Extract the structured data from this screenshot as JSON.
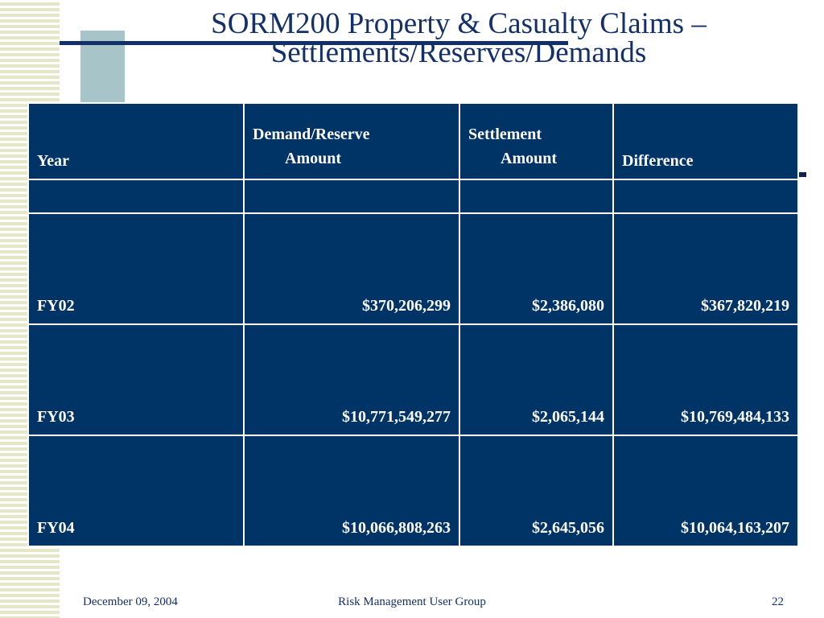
{
  "slide": {
    "title_line1": "SORM200 Property & Casualty Claims –",
    "title_line2": "Settlements/Reserves/Demands"
  },
  "table": {
    "headers": {
      "year": "Year",
      "demand_line1": "Demand/Reserve",
      "demand_line2": "Amount",
      "settlement_line1": "Settlement",
      "settlement_line2": "Amount",
      "difference": "Difference"
    },
    "rows": [
      {
        "year": "FY02",
        "demand": "$370,206,299",
        "settlement": "$2,386,080",
        "difference": "$367,820,219"
      },
      {
        "year": "FY03",
        "demand": "$10,771,549,277",
        "settlement": "$2,065,144",
        "difference": "$10,769,484,133"
      },
      {
        "year": "FY04",
        "demand": "$10,066,808,263",
        "settlement": "$2,645,056",
        "difference": "$10,064,163,207"
      }
    ]
  },
  "footer": {
    "date": "December 09, 2004",
    "group": "Risk Management User Group",
    "page": "22"
  },
  "colors": {
    "table_bg": "#003366",
    "title_text": "#14306b",
    "accent_teal": "#a7c5c9",
    "stripe": "#e6e6c8"
  }
}
